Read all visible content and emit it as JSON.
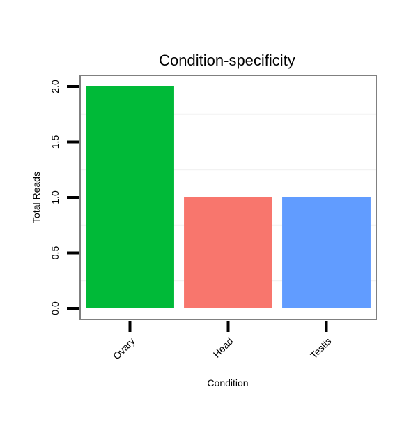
{
  "chart_data": {
    "type": "bar",
    "title": "Condition-specificity",
    "xlabel": "Condition",
    "ylabel": "Total Reads",
    "categories": [
      "Ovary",
      "Head",
      "Testis"
    ],
    "values": [
      2,
      1,
      1
    ],
    "colors": [
      "#00BA38",
      "#F8766D",
      "#619CFF"
    ],
    "ylim": [
      0,
      2
    ],
    "yticks": [
      0.0,
      0.5,
      1.0,
      1.5,
      2.0
    ],
    "ytick_labels": [
      "0.0",
      "0.5",
      "1.0",
      "1.5",
      "2.0"
    ],
    "grid": true,
    "legend": "none"
  }
}
